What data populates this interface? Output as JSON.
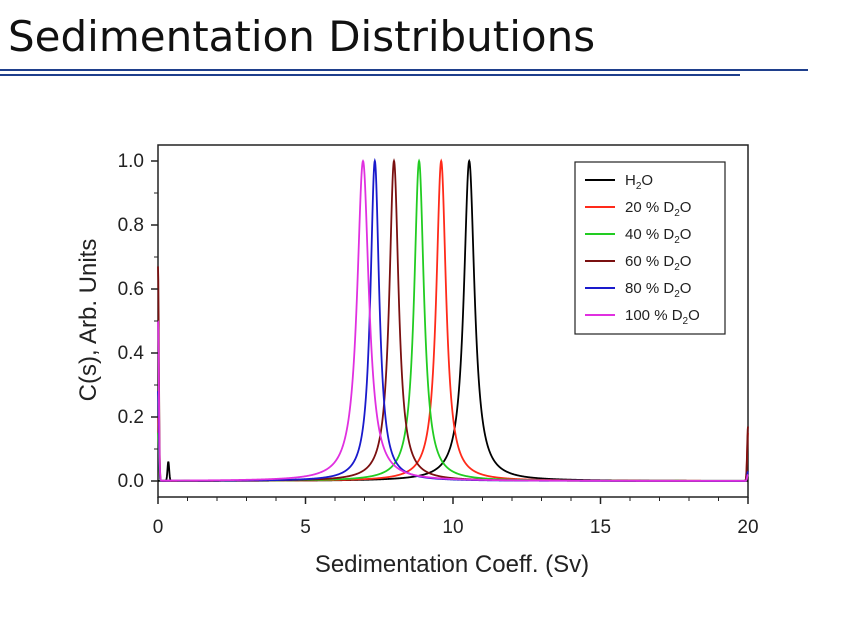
{
  "slide": {
    "title": "Sedimentation Distributions"
  },
  "colors": {
    "rule": "#1f3f8c"
  },
  "chart_data": {
    "type": "line",
    "title": "",
    "xlabel": "Sedimentation Coeff. (Sv)",
    "ylabel": "C(s), Arb. Units",
    "xlim": [
      0,
      20
    ],
    "ylim": [
      -0.05,
      1.05
    ],
    "xticks": [
      0,
      5,
      10,
      15,
      20
    ],
    "xtick_labels": [
      "0",
      "5",
      "10",
      "15",
      "20"
    ],
    "yticks": [
      0.0,
      0.2,
      0.4,
      0.6,
      0.8,
      1.0
    ],
    "ytick_labels": [
      "0.0",
      "0.2",
      "0.4",
      "0.6",
      "0.8",
      "1.0"
    ],
    "grid": false,
    "legend_position": "top-right",
    "series": [
      {
        "name": "H2O",
        "label_main": "H",
        "label_sub": "2",
        "label_tail": "O",
        "color": "#000000",
        "peak": 10.55,
        "height": 1.0,
        "width": 0.22,
        "left_spike": 0.0,
        "right_spike": 0.0,
        "near_spike": 0.06
      },
      {
        "name": "20 % D2O",
        "label_main": "20 % D",
        "label_sub": "2",
        "label_tail": "O",
        "color": "#ff2a1a",
        "peak": 9.6,
        "height": 1.0,
        "width": 0.2,
        "left_spike": 0.2,
        "right_spike": 0.15,
        "near_spike": 0.0
      },
      {
        "name": "40 % D2O",
        "label_main": "40 % D",
        "label_sub": "2",
        "label_tail": "O",
        "color": "#22cc22",
        "peak": 8.85,
        "height": 1.0,
        "width": 0.2,
        "left_spike": 0.15,
        "right_spike": 0.02,
        "near_spike": 0.0
      },
      {
        "name": "60 % D2O",
        "label_main": "60 % D",
        "label_sub": "2",
        "label_tail": "O",
        "color": "#7a1010",
        "peak": 8.0,
        "height": 1.0,
        "width": 0.19,
        "left_spike": 0.67,
        "right_spike": 0.17,
        "near_spike": 0.0
      },
      {
        "name": "80 % D2O",
        "label_main": "80 % D",
        "label_sub": "2",
        "label_tail": "O",
        "color": "#1a1acc",
        "peak": 7.35,
        "height": 1.0,
        "width": 0.18,
        "left_spike": 0.28,
        "right_spike": 0.03,
        "near_spike": 0.0
      },
      {
        "name": "100 % D2O",
        "label_main": "100 % D",
        "label_sub": "2",
        "label_tail": "O",
        "color": "#e030e0",
        "peak": 6.95,
        "height": 1.0,
        "width": 0.24,
        "left_spike": 0.5,
        "right_spike": 0.02,
        "near_spike": 0.0
      }
    ]
  }
}
